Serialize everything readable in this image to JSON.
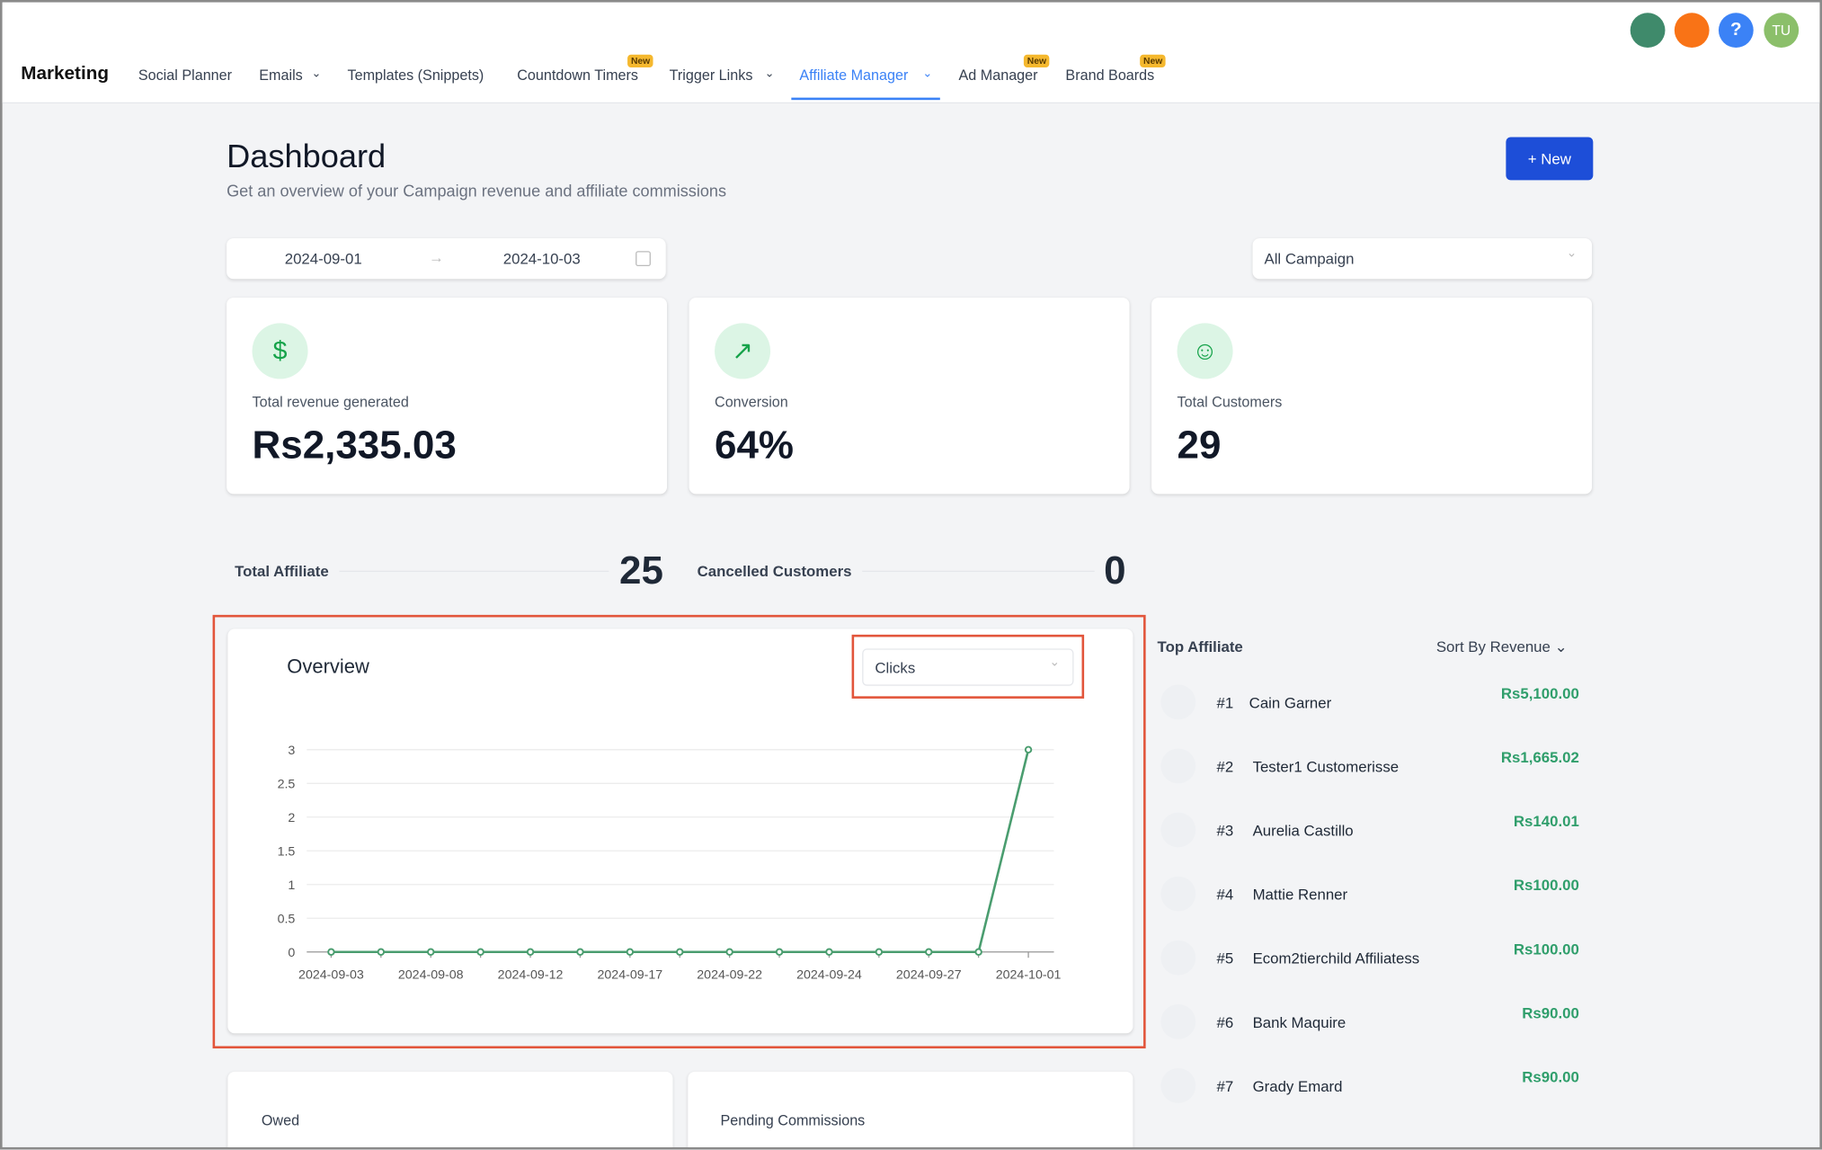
{
  "nav": {
    "brand": "Marketing",
    "items": [
      {
        "label": "Social Planner"
      },
      {
        "label": "Emails"
      },
      {
        "label": "Templates (Snippets)"
      },
      {
        "label": "Countdown Timers",
        "badge": "New"
      },
      {
        "label": "Trigger Links"
      },
      {
        "label": "Affiliate Manager"
      },
      {
        "label": "Ad Manager",
        "badge": "New"
      },
      {
        "label": "Brand Boards",
        "badge": "New"
      }
    ],
    "avatar": "TU"
  },
  "header": {
    "title": "Dashboard",
    "subtitle": "Get an overview of your Campaign revenue and affiliate commissions",
    "new_button": "New"
  },
  "filters": {
    "start_date": "2024-09-01",
    "end_date": "2024-10-03",
    "campaign": "All Campaign"
  },
  "stats": [
    {
      "label": "Total revenue generated",
      "value": "Rs2,335.03"
    },
    {
      "label": "Conversion",
      "value": "64%"
    },
    {
      "label": "Total Customers",
      "value": "29"
    }
  ],
  "summary": [
    {
      "label": "Total Affiliate",
      "value": "25"
    },
    {
      "label": "Cancelled Customers",
      "value": "0"
    }
  ],
  "overview": {
    "title": "Overview",
    "metric": "Clicks"
  },
  "chart_data": {
    "type": "line",
    "categories": [
      "2024-09-03",
      null,
      "2024-09-08",
      null,
      "2024-09-12",
      null,
      "2024-09-17",
      null,
      "2024-09-22",
      null,
      "2024-09-24",
      null,
      "2024-09-27",
      null,
      "2024-10-01"
    ],
    "values": [
      0,
      0,
      0,
      0,
      0,
      0,
      0,
      0,
      0,
      0,
      0,
      0,
      0,
      0,
      3
    ],
    "color": "#4a9d6f",
    "ylim": [
      0,
      3
    ],
    "yticks": [
      0,
      0.5,
      1,
      1.5,
      2,
      2.5,
      3
    ],
    "grid": true
  },
  "top_affiliate": {
    "title": "Top Affiliate",
    "sort": "Sort By Revenue",
    "rows": [
      {
        "rank": "#1",
        "name": "Cain Garner",
        "amount": "Rs5,100.00"
      },
      {
        "rank": "#2",
        "name": "Tester1 Customerisse",
        "amount": "Rs1,665.02"
      },
      {
        "rank": "#3",
        "name": "Aurelia Castillo",
        "amount": "Rs140.01"
      },
      {
        "rank": "#4",
        "name": "Mattie Renner",
        "amount": "Rs100.00"
      },
      {
        "rank": "#5",
        "name": "Ecom2tierchild Affiliatess",
        "amount": "Rs100.00"
      },
      {
        "rank": "#6",
        "name": "Bank Maquire",
        "amount": "Rs90.00"
      },
      {
        "rank": "#7",
        "name": "Grady Emard",
        "amount": "Rs90.00"
      }
    ]
  },
  "bottom_cards": [
    {
      "label": "Owed"
    },
    {
      "label": "Pending Commissions"
    }
  ]
}
